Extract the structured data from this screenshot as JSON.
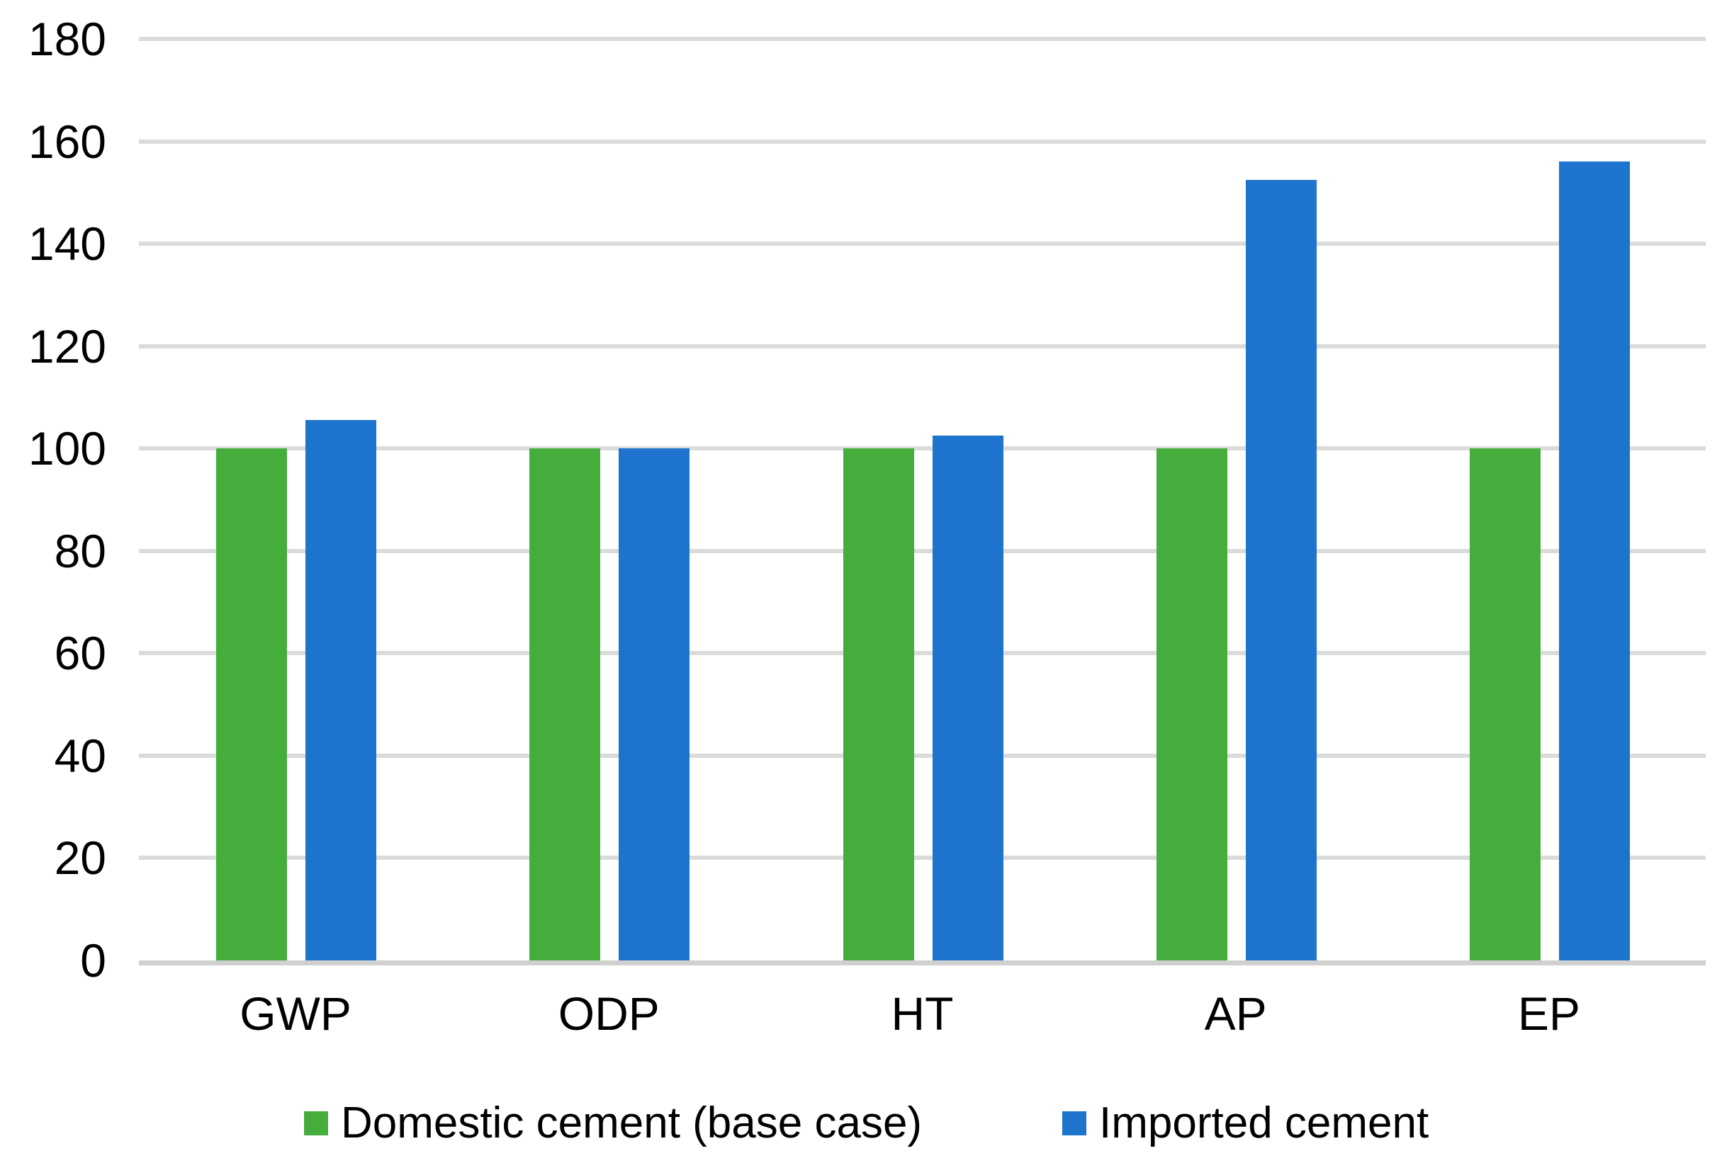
{
  "chart_data": {
    "type": "bar",
    "title": "",
    "xlabel": "",
    "ylabel": "",
    "categories": [
      "GWP",
      "ODP",
      "HT",
      "AP",
      "EP"
    ],
    "series": [
      {
        "key": "domestic",
        "name": "Domestic cement (base case)",
        "color": "#45AD3C",
        "values": [
          100,
          100,
          100,
          100,
          100
        ]
      },
      {
        "key": "imported",
        "name": "Imported cement",
        "color": "#1E74CC",
        "values": [
          105.5,
          100,
          102.5,
          152.5,
          156
        ]
      }
    ],
    "ylim": [
      0,
      180
    ],
    "yticks": [
      0,
      20,
      40,
      60,
      80,
      100,
      120,
      140,
      160,
      180
    ],
    "grid": true,
    "legend_position": "bottom",
    "gridline_color": "#DBDBDB",
    "axis_line_color": "#D0D0D0",
    "text_color": "#000000",
    "background": "#FFFFFF"
  }
}
